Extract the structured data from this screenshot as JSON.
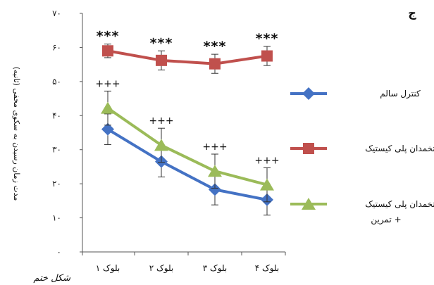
{
  "panel_letter": "ج",
  "bottom_fragment": "شکل ختم",
  "colors": {
    "control": "#4472C4",
    "pcos": "#C0504D",
    "pcos_exercise": "#9BBB59",
    "axis": "#555555",
    "error": "#333333"
  },
  "chart_data": {
    "type": "line",
    "title": "",
    "ylabel": "مدت زمان رسیدن به سکوی مخفی (ثانیه)",
    "xlabel": "",
    "ylim": [
      0,
      70
    ],
    "yticks": [
      0,
      10,
      20,
      30,
      40,
      50,
      60,
      70
    ],
    "ytick_labels": [
      "۰",
      "۱۰",
      "۲۰",
      "۳۰",
      "۴۰",
      "۵۰",
      "۶۰",
      "۷۰"
    ],
    "categories": [
      "بلوک ۱",
      "بلوک ۲",
      "بلوک ۳",
      "بلوک ۴"
    ],
    "grid": false,
    "legend_position": "right",
    "series": [
      {
        "key": "control",
        "name": "کنترل سالم",
        "values": [
          36,
          26.5,
          18.3,
          15.3
        ],
        "errors": [
          4.5,
          4.5,
          4.5,
          4.5
        ],
        "marker": "diamond"
      },
      {
        "key": "pcos",
        "name": "تخمدان پلی کیستیک",
        "values": [
          59,
          56.2,
          55.2,
          57.5
        ],
        "errors": [
          2,
          2.8,
          2.8,
          2.8
        ],
        "marker": "square"
      },
      {
        "key": "pcos_exercise",
        "name": "تخمدان پلی کیستیک",
        "name_line2": "+ تمرین",
        "values": [
          42.2,
          31.3,
          23.7,
          19.7
        ],
        "errors": [
          5,
          5,
          5,
          5
        ],
        "marker": "triangle"
      }
    ],
    "annotations": {
      "stars": [
        "***",
        "***",
        "***",
        "***"
      ],
      "plus": [
        "+++",
        "+++",
        "+++",
        "+++"
      ]
    }
  }
}
